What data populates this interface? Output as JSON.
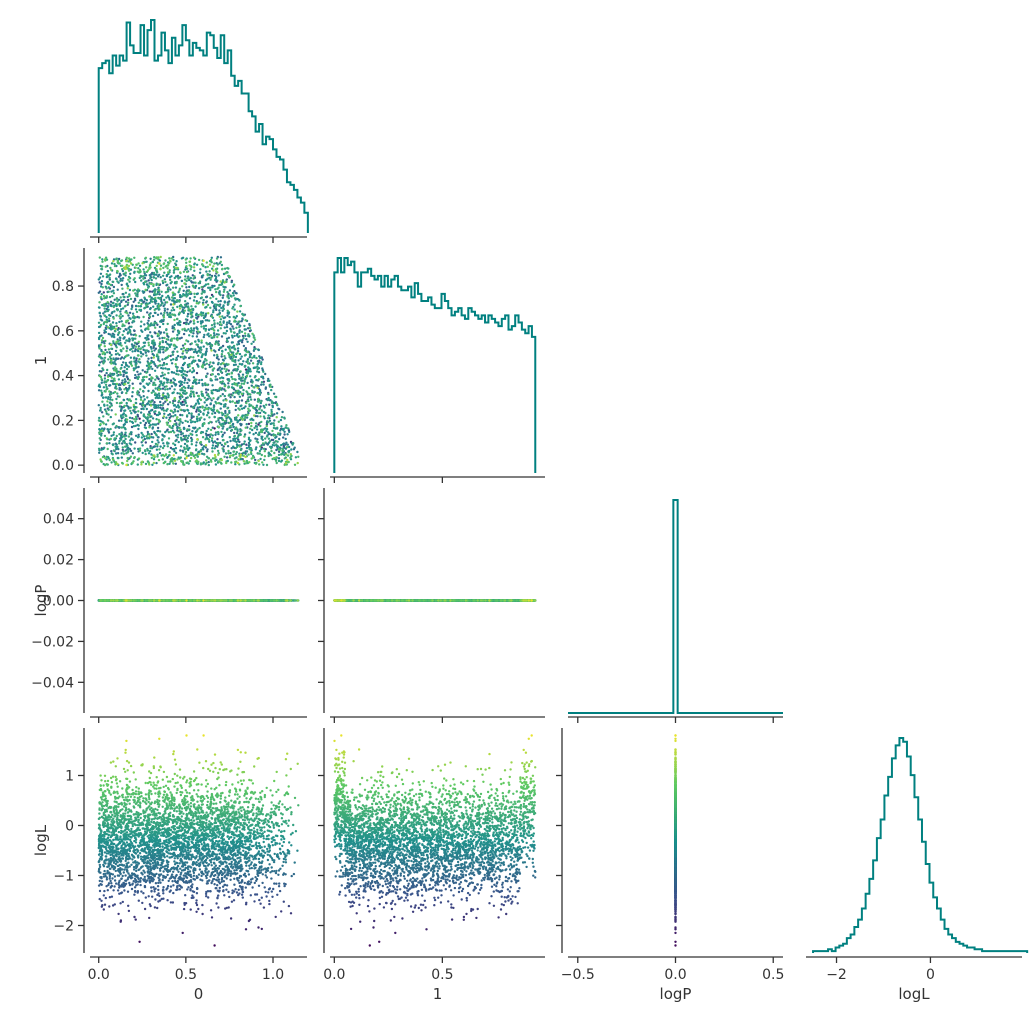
{
  "chart_data": {
    "type": "corner",
    "variables": [
      {
        "key": "p0",
        "label": "0",
        "range": [
          -0.05,
          1.195
        ],
        "ticks": [
          0.0,
          0.5,
          1.0
        ],
        "tick_labels": [
          "0.0",
          "0.5",
          "1.0"
        ]
      },
      {
        "key": "p1",
        "label": "1",
        "range": [
          -0.02,
          0.975
        ],
        "ticks": [
          0.0,
          0.5
        ],
        "tick_labels": [
          "0.0",
          "0.5"
        ],
        "y_ticks": [
          0.0,
          0.2,
          0.4,
          0.6,
          0.8
        ],
        "y_tick_labels": [
          "0.0",
          "0.2",
          "0.4",
          "0.6",
          "0.8"
        ],
        "y_range": [
          -0.035,
          0.97
        ]
      },
      {
        "key": "logP",
        "label": "logP",
        "range": [
          -0.55,
          0.55
        ],
        "ticks": [
          -0.5,
          0.0,
          0.5
        ],
        "tick_labels": [
          "−0.5",
          "0.0",
          "0.5"
        ],
        "y_ticks": [
          -0.04,
          -0.02,
          0.0,
          0.02,
          0.04
        ],
        "y_tick_labels": [
          "−0.04",
          "−0.02",
          "0.00",
          "0.02",
          "0.04"
        ],
        "y_range": [
          -0.055,
          0.055
        ]
      },
      {
        "key": "logL",
        "label": "logL",
        "range": [
          -2.65,
          1.95
        ],
        "ticks": [
          -2,
          0
        ],
        "tick_labels": [
          "−2",
          "0"
        ],
        "y_ticks": [
          -2,
          -1,
          0,
          1
        ],
        "y_tick_labels": [
          "−2",
          "−1",
          "0",
          "1"
        ],
        "y_range": [
          -2.55,
          1.95
        ]
      }
    ],
    "histograms": {
      "p0": {
        "bin_start": 0.0,
        "bin_width": 0.02,
        "counts": [
          65,
          67,
          68,
          63,
          70,
          66,
          70,
          68,
          83,
          74,
          71,
          71,
          82,
          70,
          80,
          84,
          68,
          70,
          79,
          72,
          67,
          77,
          70,
          74,
          82,
          76,
          70,
          75,
          73,
          72,
          70,
          79,
          78,
          73,
          69,
          78,
          67,
          72,
          62,
          58,
          60,
          55,
          55,
          48,
          46,
          40,
          43,
          35,
          38,
          37,
          33,
          30,
          29,
          25,
          20,
          19,
          17,
          14,
          12,
          8
        ]
      },
      "p1": {
        "bin_start": 0.0,
        "bin_width": 0.0155,
        "counts": [
          56,
          60,
          56,
          60,
          58,
          59,
          56,
          52,
          56,
          56,
          57,
          55,
          54,
          55,
          52,
          55,
          52,
          54,
          55,
          52,
          51,
          51,
          52,
          49,
          53,
          50,
          48,
          48,
          49,
          47,
          46,
          46,
          50,
          48,
          46,
          44,
          45,
          46,
          44,
          43,
          46,
          45,
          44,
          43,
          44,
          42,
          44,
          43,
          42,
          41,
          43,
          44,
          40,
          41,
          44,
          42,
          40,
          39,
          41,
          38
        ]
      },
      "logP": {
        "bin_start": -0.55,
        "bin_width": 0.022,
        "peak_value": 0.0,
        "peak_count": 4000
      },
      "logL": {
        "bin_start": -2.5,
        "bin_width": 0.08,
        "counts": [
          1,
          1,
          1,
          1,
          2,
          1,
          3,
          4,
          5,
          8,
          10,
          14,
          18,
          24,
          32,
          40,
          50,
          62,
          72,
          85,
          95,
          105,
          112,
          116,
          114,
          106,
          96,
          84,
          72,
          60,
          48,
          38,
          30,
          24,
          18,
          13,
          10,
          8,
          6,
          5,
          4,
          3,
          3,
          2,
          2,
          1,
          1,
          1,
          1,
          1,
          1,
          1,
          1,
          1,
          1,
          1,
          1
        ]
      }
    },
    "scatter": {
      "n_points": 4000,
      "color_variable": "logL",
      "colormap": "viridis",
      "logP_constant": 0.0
    },
    "hist_color": "#008080",
    "colormap_stops": [
      "#440154",
      "#3b528b",
      "#21918c",
      "#5ec962",
      "#fde725"
    ]
  }
}
